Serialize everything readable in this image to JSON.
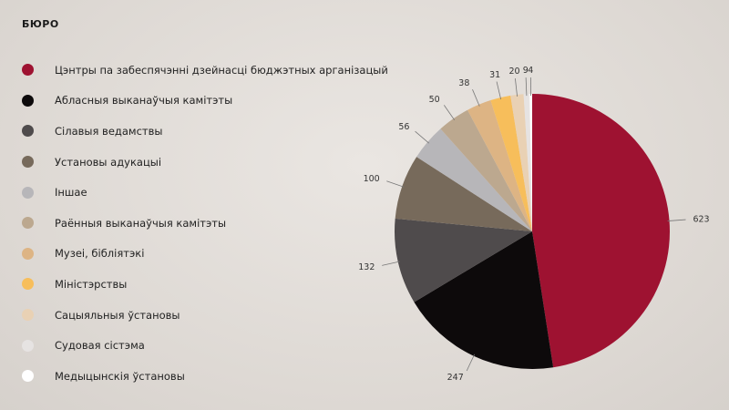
{
  "header": {
    "logo": "БЮРО"
  },
  "chart_data": {
    "type": "pie",
    "title": "",
    "legend_position": "left",
    "slices": [
      {
        "label": "Цэнтры па забеспячэнні дзейнасці бюджэтных арганізацый",
        "value": 623,
        "color": "#9e1231"
      },
      {
        "label": "Абласныя выканаўчыя камітэты",
        "value": 247,
        "color": "#0d0a0b"
      },
      {
        "label": "Сілавыя ведамствы",
        "value": 132,
        "color": "#4f4b4c"
      },
      {
        "label": "Установы адукацыі",
        "value": 100,
        "color": "#776a5b"
      },
      {
        "label": "Іншае",
        "value": 56,
        "color": "#b7b6b9"
      },
      {
        "label": "Раённыя выканаўчыя камітэты",
        "value": 50,
        "color": "#bca88f"
      },
      {
        "label": "Музеі, бібліятэкі",
        "value": 38,
        "color": "#ddb484"
      },
      {
        "label": "Міністэрствы",
        "value": 31,
        "color": "#f7be5b"
      },
      {
        "label": "Сацыяльныя ўстановы",
        "value": 20,
        "color": "#e9d1b4"
      },
      {
        "label": "Судовая сістэма",
        "value": 9,
        "color": "#e6e3e2"
      },
      {
        "label": "Медыцынскія ўстановы",
        "value": 4,
        "color": "#ffffff"
      }
    ]
  }
}
